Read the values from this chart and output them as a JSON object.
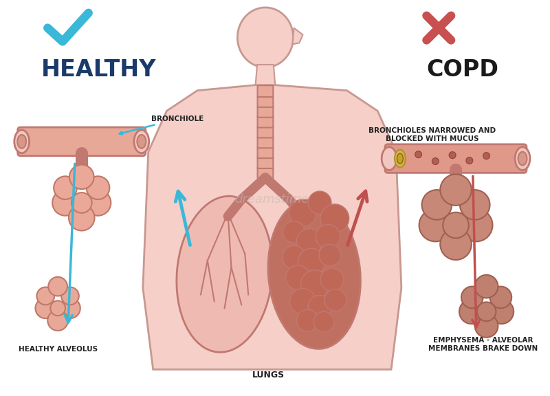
{
  "title_left": "HEALTHY",
  "title_right": "COPD",
  "label_bronchiole": "BRONCHIOLE",
  "label_healthy_alveolus": "HEALTHY ALVEOLUS",
  "label_lungs": "LUNGS",
  "label_bronchioles_blocked": "BRONCHIOLES NARROWED AND\nBLOCKED WITH MUCUS",
  "label_emphysema": "EMPHYSEMA - ALVEOLAR\nMEMBRANES BRAKE DOWN",
  "bg_color": "#FFFFFF",
  "body_fill": "#F5CFC8",
  "body_stroke": "#C89890",
  "lung_healthy_fill": "#EFBAB2",
  "lung_sick_fill": "#C87868",
  "tube_fill": "#E8A898",
  "tube_stroke": "#C07870",
  "alv_healthy_fill": "#EAA898",
  "alv_healthy_stroke": "#C07868",
  "alv_sick_fill": "#C88878",
  "alv_sick_stroke": "#A06050",
  "blue_arrow": "#3AB8D8",
  "red_arrow": "#C05050",
  "check_color": "#3AB8D8",
  "cross_color": "#C85050",
  "title_left_color": "#1A3A6A",
  "title_right_color": "#1A1A1A",
  "label_color": "#222222",
  "watermark_color": "#C8B8B0",
  "watermark_text": "dreamstime"
}
